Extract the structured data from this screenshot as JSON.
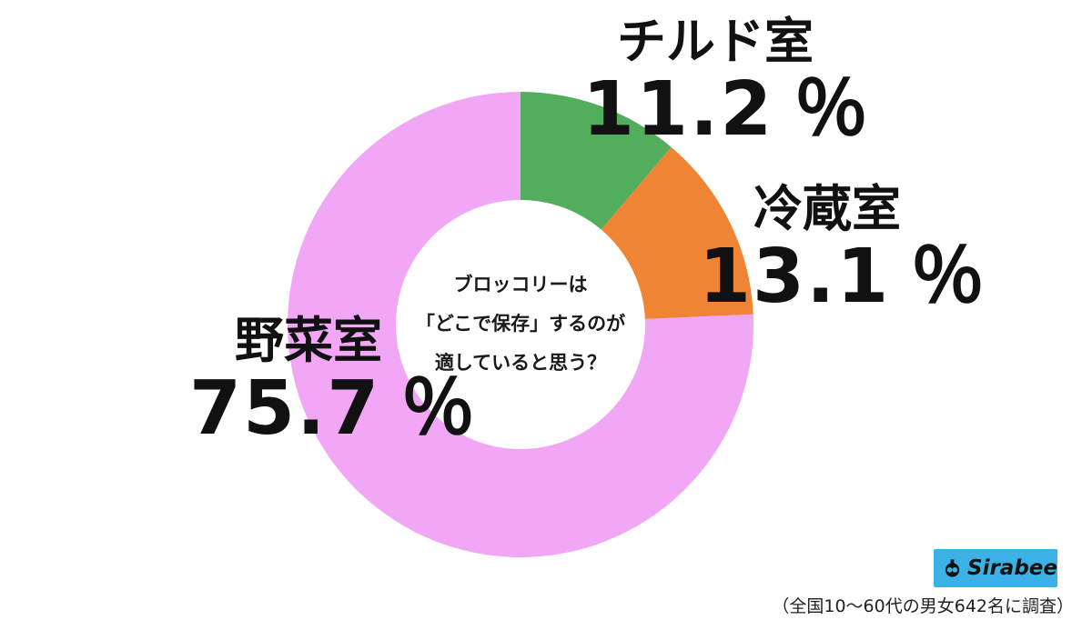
{
  "chart_data": {
    "type": "pie",
    "style": "donut",
    "question": [
      "ブロッコリーは",
      "「どこで保存」するのが",
      "適していると思う？"
    ],
    "series": [
      {
        "name": "チルド室",
        "value": 11.2,
        "value_label": "11.2",
        "unit": "％",
        "color": "#52ae5c"
      },
      {
        "name": "冷蔵室",
        "value": 13.1,
        "value_label": "13.1",
        "unit": "％",
        "color": "#ef8434"
      },
      {
        "name": "野菜室",
        "value": 75.7,
        "value_label": "75.7",
        "unit": "％",
        "color": "#f1a7f5"
      }
    ]
  },
  "branding": {
    "logo_text": "Sirabee",
    "logo_bg": "#3bb1e6"
  },
  "footnote": "（全国10～60代の男女642名に調査）"
}
